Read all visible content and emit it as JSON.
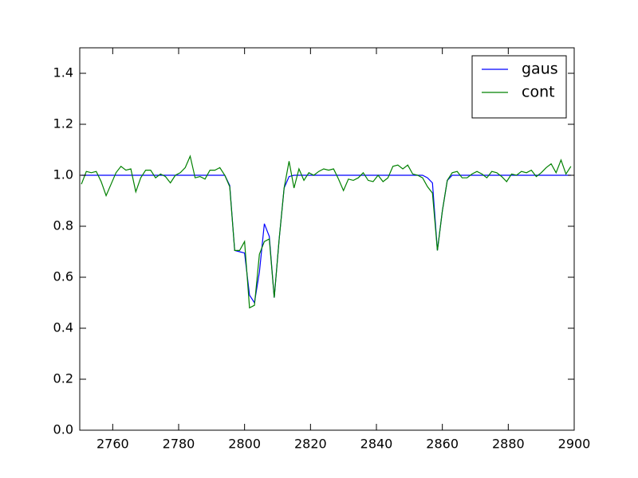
{
  "chart_data": {
    "type": "line",
    "x": [
      2750.5,
      2752,
      2753.5,
      2755,
      2756.5,
      2758,
      2759.5,
      2761,
      2762.5,
      2764,
      2765.5,
      2767,
      2768.5,
      2770,
      2771.5,
      2773,
      2774.5,
      2776,
      2777.5,
      2779,
      2780.5,
      2782,
      2783.5,
      2785,
      2786.5,
      2788,
      2789.5,
      2791,
      2792.5,
      2794,
      2795.5,
      2797,
      2798.5,
      2800,
      2801.5,
      2803,
      2804.5,
      2806,
      2807.5,
      2809,
      2810.5,
      2812,
      2813.5,
      2815,
      2816.5,
      2818,
      2819.5,
      2821,
      2822.5,
      2824,
      2825.5,
      2827,
      2828.5,
      2830,
      2831.5,
      2833,
      2834.5,
      2836,
      2837.5,
      2839,
      2840.5,
      2842,
      2843.5,
      2845,
      2846.5,
      2848,
      2849.5,
      2851,
      2852.5,
      2854,
      2855.5,
      2857,
      2858.5,
      2860,
      2861.5,
      2863,
      2864.5,
      2866,
      2867.5,
      2869,
      2870.5,
      2872,
      2873.5,
      2875,
      2876.5,
      2878,
      2879.5,
      2881,
      2882.5,
      2884,
      2885.5,
      2887,
      2888.5,
      2890,
      2891.5,
      2893,
      2894.5,
      2896,
      2897.5,
      2899
    ],
    "series": [
      {
        "name": "gaus",
        "color": "#0000ff",
        "values": [
          1,
          1,
          1,
          1,
          1,
          1,
          1,
          1,
          1,
          1,
          1,
          1,
          1,
          1,
          1,
          1,
          1,
          1,
          1,
          1,
          1,
          1,
          1,
          1,
          1,
          1,
          1,
          1,
          1,
          1,
          0.96,
          0.705,
          0.7,
          0.695,
          0.53,
          0.5,
          0.62,
          0.81,
          0.76,
          0.52,
          0.75,
          0.95,
          0.995,
          1,
          1,
          1,
          1,
          1,
          1,
          1,
          1,
          1,
          1,
          1,
          1,
          1,
          1,
          1,
          1,
          1,
          1,
          1,
          1,
          1,
          1,
          1,
          1,
          1,
          1,
          1,
          0.99,
          0.97,
          0.705,
          0.86,
          0.98,
          1,
          1,
          1,
          1,
          1,
          1,
          1,
          1,
          1,
          1,
          1,
          1,
          1,
          1,
          1,
          1,
          1,
          1,
          1,
          1,
          1,
          1,
          1,
          1,
          1
        ]
      },
      {
        "name": "cont",
        "color": "#008000",
        "values": [
          0.965,
          1.015,
          1.01,
          1.015,
          0.975,
          0.92,
          0.965,
          1.01,
          1.035,
          1.02,
          1.025,
          0.935,
          0.99,
          1.02,
          1.02,
          0.99,
          1.005,
          0.995,
          0.97,
          1.0,
          1.01,
          1.03,
          1.075,
          0.99,
          0.995,
          0.985,
          1.02,
          1.02,
          1.03,
          1.0,
          0.955,
          0.705,
          0.705,
          0.74,
          0.48,
          0.49,
          0.69,
          0.74,
          0.75,
          0.52,
          0.75,
          0.95,
          1.055,
          0.95,
          1.025,
          0.98,
          1.01,
          1.0,
          1.015,
          1.025,
          1.02,
          1.025,
          0.985,
          0.94,
          0.985,
          0.98,
          0.99,
          1.01,
          0.98,
          0.975,
          1.0,
          0.975,
          0.99,
          1.035,
          1.04,
          1.025,
          1.04,
          1.005,
          1.0,
          0.99,
          0.955,
          0.93,
          0.705,
          0.86,
          0.98,
          1.01,
          1.015,
          0.99,
          0.99,
          1.005,
          1.015,
          1.005,
          0.99,
          1.015,
          1.01,
          0.995,
          0.975,
          1.005,
          1.0,
          1.015,
          1.01,
          1.02,
          0.995,
          1.01,
          1.03,
          1.045,
          1.01,
          1.06,
          1.005,
          1.035
        ]
      }
    ],
    "xlim": [
      2750,
      2900
    ],
    "xticks": [
      2760,
      2780,
      2800,
      2820,
      2840,
      2860,
      2880,
      2900
    ],
    "ylim": [
      0,
      1.5
    ],
    "yticks": [
      {
        "value": 0,
        "label": "0.0"
      },
      {
        "value": 0.2,
        "label": "0.2"
      },
      {
        "value": 0.4,
        "label": "0.4"
      },
      {
        "value": 0.6,
        "label": "0.6"
      },
      {
        "value": 0.8,
        "label": "0.8"
      },
      {
        "value": 1.0,
        "label": "1.0"
      },
      {
        "value": 1.2,
        "label": "1.2"
      },
      {
        "value": 1.4,
        "label": "1.4"
      }
    ],
    "legend": "upper right"
  }
}
